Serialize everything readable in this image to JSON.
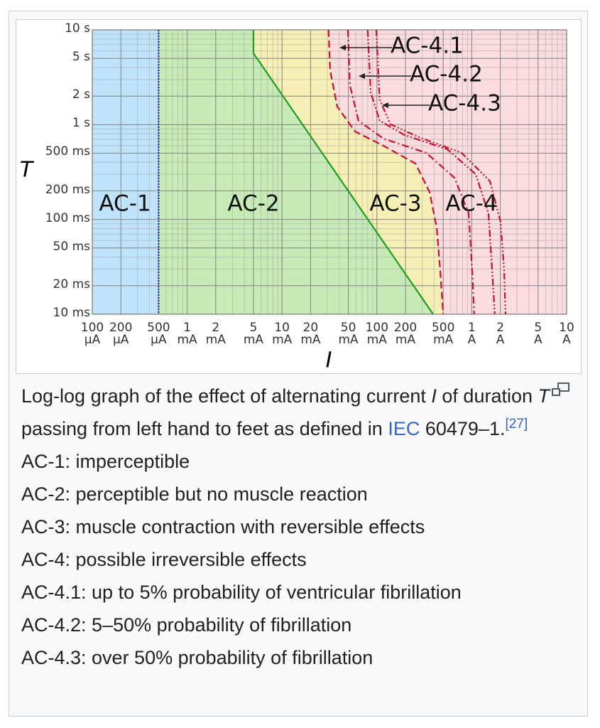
{
  "chart_data": {
    "type": "line",
    "log_x": true,
    "log_y": true,
    "grid": true,
    "minor_grid": true,
    "xlabel": "I",
    "ylabel": "T",
    "xlim": [
      0.1,
      10000
    ],
    "ylim": [
      10,
      10000
    ],
    "xticks": [
      {
        "value": 0.1,
        "label": "100 µA"
      },
      {
        "value": 0.2,
        "label": "200 µA"
      },
      {
        "value": 0.5,
        "label": "500 µA"
      },
      {
        "value": 1,
        "label": "1 mA"
      },
      {
        "value": 2,
        "label": "2 mA"
      },
      {
        "value": 5,
        "label": "5 mA"
      },
      {
        "value": 10,
        "label": "10 mA"
      },
      {
        "value": 20,
        "label": "20 mA"
      },
      {
        "value": 50,
        "label": "50 mA"
      },
      {
        "value": 100,
        "label": "100 mA"
      },
      {
        "value": 200,
        "label": "200 mA"
      },
      {
        "value": 500,
        "label": "500 mA"
      },
      {
        "value": 1000,
        "label": "1 A"
      },
      {
        "value": 2000,
        "label": "2 A"
      },
      {
        "value": 5000,
        "label": "5 A"
      },
      {
        "value": 10000,
        "label": "10 A"
      }
    ],
    "yticks": [
      {
        "value": 10000,
        "label": "10 s"
      },
      {
        "value": 5000,
        "label": "5 s"
      },
      {
        "value": 2000,
        "label": "2 s"
      },
      {
        "value": 1000,
        "label": "1 s"
      },
      {
        "value": 500,
        "label": "500 ms"
      },
      {
        "value": 200,
        "label": "200 ms"
      },
      {
        "value": 100,
        "label": "100 ms"
      },
      {
        "value": 50,
        "label": "50 ms"
      },
      {
        "value": 20,
        "label": "20 ms"
      },
      {
        "value": 10,
        "label": "10 ms"
      }
    ],
    "zone_colors": [
      "#bfe3fa",
      "#c6ebb6",
      "#f6f0b6",
      "#fbdcdf"
    ],
    "series": [
      {
        "color": "#1a2fb8",
        "dash": "dotted",
        "x": [
          0.5,
          0.5
        ],
        "values": [
          10000,
          10
        ]
      },
      {
        "color": "#1d9e1d",
        "dash": "solid",
        "x": [
          5,
          5,
          392
        ],
        "values": [
          10000,
          5660,
          10
        ]
      },
      {
        "color": "#c8102e",
        "dash": "dashed",
        "x": [
          30.9,
          32.2,
          38.2,
          58.8,
          117,
          255,
          359,
          427,
          465,
          500
        ],
        "values": [
          10000,
          3680,
          1550,
          847,
          600,
          389,
          195,
          82,
          29,
          10
        ]
      },
      {
        "color": "#c8102e",
        "dash": "dashdot",
        "x": [
          49.5,
          52,
          64,
          117,
          330,
          656,
          927,
          1010,
          1060
        ],
        "values": [
          10000,
          2600,
          1100,
          713,
          505,
          276,
          116,
          29,
          10
        ]
      },
      {
        "color": "#c8102e",
        "dash": "dashdotdot",
        "x": [
          80,
          86,
          107,
          196,
          553,
          1100,
          1500,
          1640,
          1750
        ],
        "values": [
          10000,
          2190,
          1100,
          777,
          550,
          300,
          116,
          29,
          10
        ]
      },
      {
        "color": "#c8102e",
        "dash": "dashdotdotdot",
        "x": [
          98.6,
          107,
          139,
          277,
          780,
          1556,
          2014,
          2194,
          2270
        ],
        "values": [
          10000,
          1840,
          1010,
          738,
          505,
          253,
          94,
          29,
          10
        ]
      }
    ],
    "annotations": [
      "AC-1",
      "AC-2",
      "AC-3",
      "AC-4",
      "AC-4.1",
      "AC-4.2",
      "AC-4.3"
    ]
  },
  "caption": {
    "parts": [
      "Log-log graph of the effect of alternating current ",
      "I",
      " of duration ",
      "T",
      " passing from left hand to feet as defined in ",
      "IEC",
      " 60479–1.",
      "[27]"
    ],
    "lines": [
      "AC-1: imperceptible",
      "AC-2: perceptible but no muscle reaction",
      "AC-3: muscle contraction with reversible effects",
      "AC-4: possible irreversible effects",
      "AC-4.1: up to 5% probability of ventricular fibrillation",
      "AC-4.2: 5–50% probability of fibrillation",
      "AC-4.3: over 50% probability of fibrillation"
    ]
  }
}
